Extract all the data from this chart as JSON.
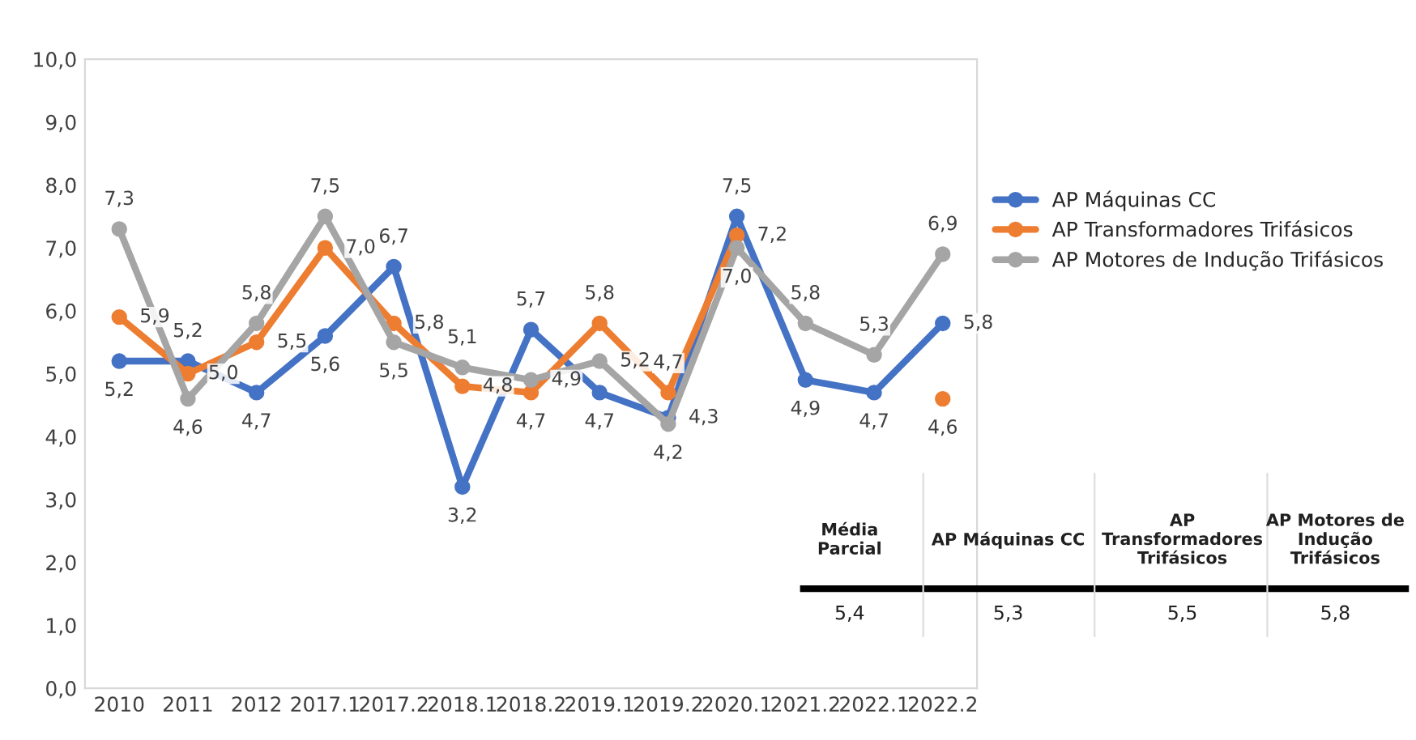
{
  "chart_data": {
    "type": "line",
    "categories": [
      "2010",
      "2011",
      "2012",
      "2017.1",
      "2017.2",
      "2018.1",
      "2018.2",
      "2019.1",
      "2019.2",
      "2020.1",
      "2021.2",
      "2022.1",
      "2022.2"
    ],
    "ylim": [
      0,
      10
    ],
    "yticks": [
      {
        "value": 0,
        "label": "0,0"
      },
      {
        "value": 1,
        "label": "1,0"
      },
      {
        "value": 2,
        "label": "2,0"
      },
      {
        "value": 3,
        "label": "3,0"
      },
      {
        "value": 4,
        "label": "4,0"
      },
      {
        "value": 5,
        "label": "5,0"
      },
      {
        "value": 6,
        "label": "6,0"
      },
      {
        "value": 7,
        "label": "7,0"
      },
      {
        "value": 8,
        "label": "8,0"
      },
      {
        "value": 9,
        "label": "9,0"
      },
      {
        "value": 10,
        "label": "10,0"
      }
    ],
    "marker": "circle",
    "legend": "right",
    "grid": false,
    "series": [
      {
        "name": "AP Máquinas CC",
        "color": "#4472c4",
        "values": [
          5.2,
          5.2,
          4.7,
          5.6,
          6.7,
          3.2,
          5.7,
          4.7,
          4.3,
          7.5,
          4.9,
          4.7,
          5.8
        ],
        "value_labels": [
          "5,2",
          "5,2",
          "4,7",
          "5,6",
          "6,7",
          "3,2",
          "5,7",
          "4,7",
          "4,3",
          "7,5",
          "4,9",
          "4,7",
          "5,8"
        ]
      },
      {
        "name": "AP Transformadores Trifásicos",
        "color": "#ed7d31",
        "values": [
          5.9,
          5.0,
          5.5,
          7.0,
          5.8,
          4.8,
          4.7,
          5.8,
          4.7,
          7.2,
          null,
          null,
          4.6
        ],
        "value_labels": [
          "5,9",
          "5,0",
          "5,5",
          "7,0",
          "5,8",
          "4,8",
          "4,7",
          "5,8",
          "4,7",
          "7,2",
          null,
          null,
          "4,6"
        ]
      },
      {
        "name": "AP Motores de Indução Trifásicos",
        "color": "#a5a5a5",
        "values": [
          7.3,
          4.6,
          5.8,
          7.5,
          5.5,
          5.1,
          4.9,
          5.2,
          4.2,
          7.0,
          5.8,
          5.3,
          6.9
        ],
        "value_labels": [
          "7,3",
          "4,6",
          "5,8",
          "7,5",
          "5,5",
          "5,1",
          "4,9",
          "5,2",
          "4,2",
          "7,0",
          "5,8",
          "5,3",
          "6,9"
        ]
      }
    ],
    "annotations": [
      "Média\nParcial",
      "AP Máquinas CC",
      "AP\nTransformadores\nTrifásicos",
      "AP Motores de\nIndução\nTrifásicos",
      "5,4",
      "5,3",
      "5,5",
      "5,8"
    ]
  }
}
